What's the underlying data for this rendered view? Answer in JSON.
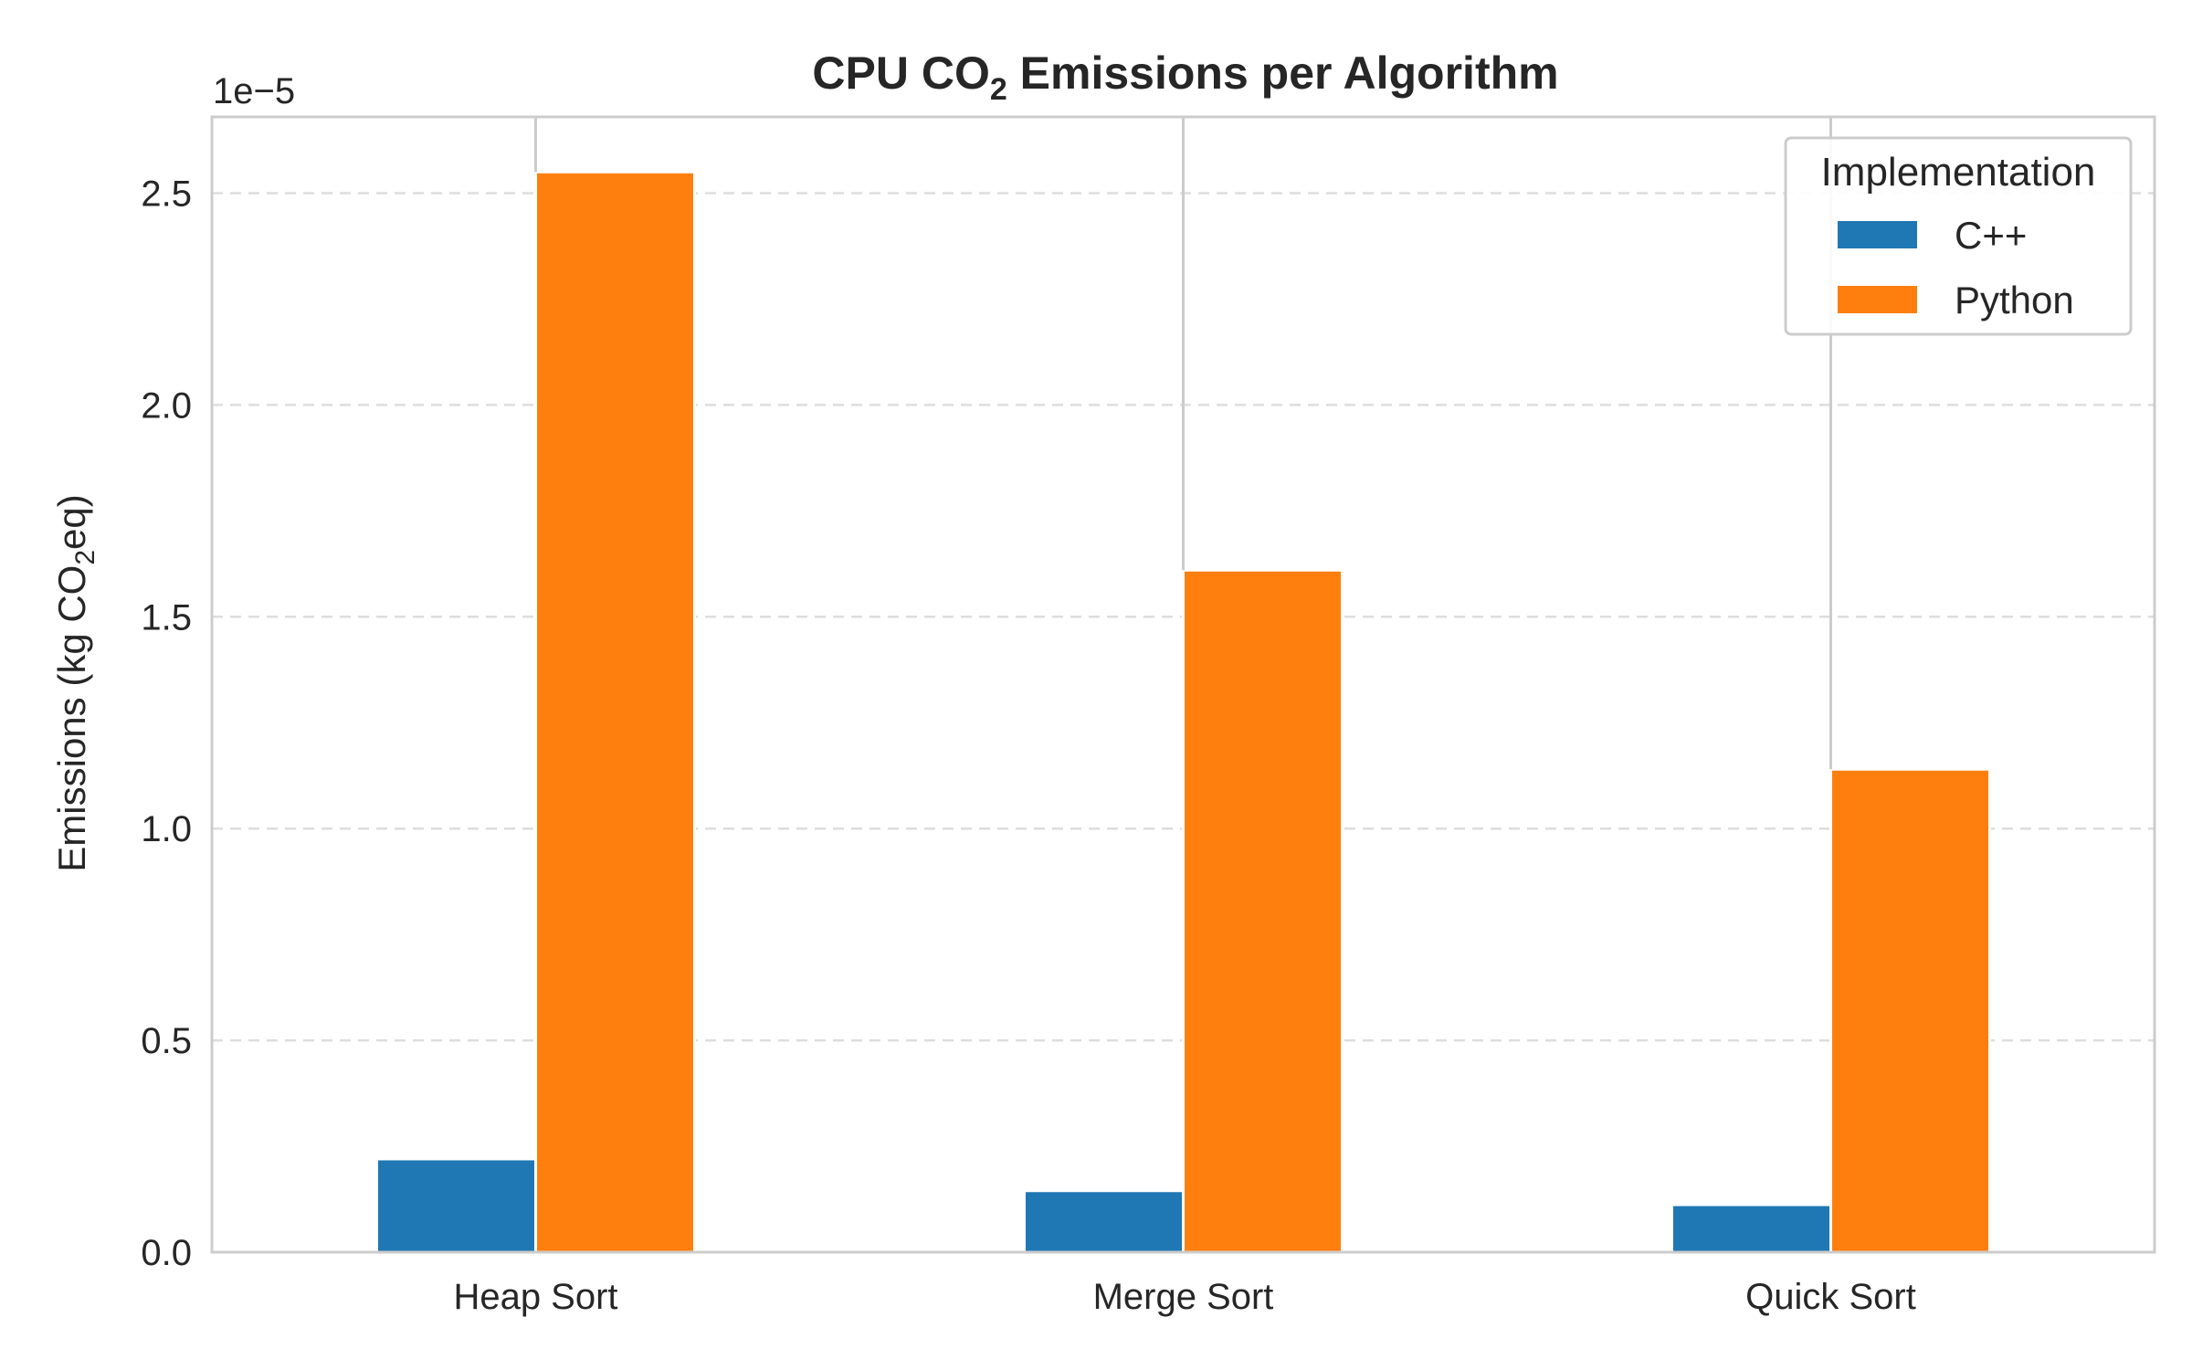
{
  "chart_data": {
    "type": "bar",
    "title": {
      "prefix": "CPU CO",
      "subscript": "2",
      "suffix": " Emissions per Algorithm"
    },
    "xlabel": "",
    "ylabel": {
      "prefix": "Emissions (kg CO",
      "subscript": "2",
      "suffix": "eq)"
    },
    "y_offset_label": "1e−5",
    "y_scale_multiplier": 1e-05,
    "categories": [
      "Heap Sort",
      "Merge Sort",
      "Quick Sort"
    ],
    "series": [
      {
        "name": "C++",
        "color": "#1f77b4",
        "values": [
          2.2e-06,
          1.45e-06,
          1.12e-06
        ]
      },
      {
        "name": "Python",
        "color": "#ff7f0e",
        "values": [
          2.55e-05,
          1.61e-05,
          1.14e-05
        ]
      }
    ],
    "error_bar_tops": [
      2.68e-05,
      2.68e-05,
      2.68e-05
    ],
    "ylim": [
      0,
      2.68e-05
    ],
    "yticks": [
      0.0,
      0.5,
      1.0,
      1.5,
      2.0,
      2.5
    ],
    "ytick_labels": [
      "0.0",
      "0.5",
      "1.0",
      "1.5",
      "2.0",
      "2.5"
    ],
    "grid": "horizontal-dashed",
    "legend": {
      "title": "Implementation",
      "placement": "top-right",
      "entries": [
        "C++",
        "Python"
      ]
    }
  }
}
